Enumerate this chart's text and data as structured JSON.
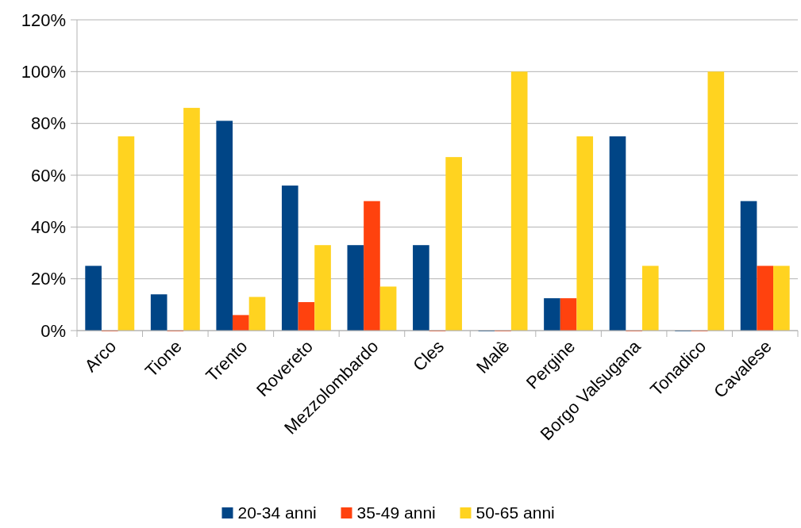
{
  "chart_data": {
    "type": "bar",
    "categories": [
      "Arco",
      "Tione",
      "Trento",
      "Rovereto",
      "Mezzolombardo",
      "Cles",
      "Malè",
      "Pergine",
      "Borgo Valsugana",
      "Tonadico",
      "Cavalese"
    ],
    "series": [
      {
        "name": "20-34 anni",
        "color": "#004586",
        "values": [
          25,
          14,
          81,
          56,
          33,
          33,
          0,
          12.5,
          75,
          0,
          50
        ]
      },
      {
        "name": "35-49 anni",
        "color": "#ff420e",
        "values": [
          0,
          0,
          6,
          11,
          50,
          0,
          0,
          12.5,
          0,
          0,
          25
        ]
      },
      {
        "name": "50-65 anni",
        "color": "#ffd320",
        "values": [
          75,
          86,
          13,
          33,
          17,
          67,
          100,
          75,
          25,
          100,
          25
        ]
      }
    ],
    "ylim": [
      0,
      120
    ],
    "yticks": [
      {
        "value": 0,
        "label": "0%"
      },
      {
        "value": 20,
        "label": "20%"
      },
      {
        "value": 40,
        "label": "40%"
      },
      {
        "value": 60,
        "label": "60%"
      },
      {
        "value": 80,
        "label": "80%"
      },
      {
        "value": 100,
        "label": "100%"
      },
      {
        "value": 120,
        "label": "120%"
      }
    ],
    "grid": "y",
    "legend": "bottom"
  }
}
